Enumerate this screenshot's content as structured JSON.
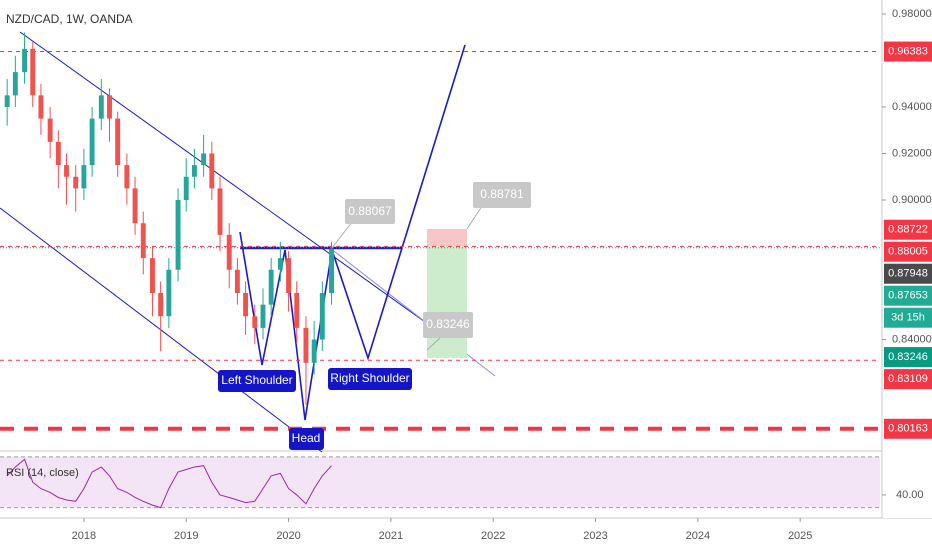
{
  "chart_data": {
    "type": "candlestick",
    "title": "NZD/CAD, 1W, OANDA",
    "x": [
      2017.25,
      2017.33,
      2017.42,
      2017.5,
      2017.58,
      2017.67,
      2017.75,
      2017.83,
      2017.92,
      2018.0,
      2018.08,
      2018.17,
      2018.25,
      2018.33,
      2018.42,
      2018.5,
      2018.58,
      2018.67,
      2018.75,
      2018.83,
      2018.92,
      2019.0,
      2019.08,
      2019.17,
      2019.25,
      2019.33,
      2019.42,
      2019.5,
      2019.58,
      2019.67,
      2019.75,
      2019.83,
      2019.92,
      2020.0,
      2020.08,
      2020.17,
      2020.25,
      2020.33,
      2020.42
    ],
    "open": [
      0.94,
      0.945,
      0.955,
      0.965,
      0.945,
      0.935,
      0.925,
      0.915,
      0.91,
      0.905,
      0.915,
      0.935,
      0.945,
      0.935,
      0.915,
      0.905,
      0.89,
      0.875,
      0.86,
      0.85,
      0.87,
      0.9,
      0.91,
      0.915,
      0.92,
      0.905,
      0.885,
      0.87,
      0.86,
      0.85,
      0.845,
      0.855,
      0.87,
      0.875,
      0.86,
      0.845,
      0.83,
      0.84,
      0.86
    ],
    "high": [
      0.952,
      0.962,
      0.972,
      0.968,
      0.95,
      0.94,
      0.93,
      0.92,
      0.915,
      0.922,
      0.94,
      0.952,
      0.948,
      0.938,
      0.92,
      0.91,
      0.895,
      0.88,
      0.865,
      0.875,
      0.905,
      0.918,
      0.922,
      0.928,
      0.925,
      0.91,
      0.89,
      0.875,
      0.865,
      0.855,
      0.862,
      0.875,
      0.882,
      0.878,
      0.865,
      0.85,
      0.848,
      0.865,
      0.882
    ],
    "low": [
      0.932,
      0.94,
      0.95,
      0.94,
      0.928,
      0.918,
      0.905,
      0.898,
      0.895,
      0.9,
      0.91,
      0.93,
      0.925,
      0.91,
      0.898,
      0.885,
      0.868,
      0.85,
      0.835,
      0.845,
      0.865,
      0.895,
      0.905,
      0.91,
      0.9,
      0.878,
      0.862,
      0.855,
      0.842,
      0.838,
      0.84,
      0.85,
      0.865,
      0.852,
      0.838,
      0.812,
      0.825,
      0.835,
      0.855
    ],
    "close": [
      0.945,
      0.955,
      0.965,
      0.945,
      0.935,
      0.925,
      0.915,
      0.91,
      0.905,
      0.915,
      0.935,
      0.945,
      0.935,
      0.915,
      0.905,
      0.89,
      0.875,
      0.86,
      0.85,
      0.87,
      0.9,
      0.91,
      0.915,
      0.92,
      0.905,
      0.885,
      0.87,
      0.86,
      0.85,
      0.845,
      0.855,
      0.87,
      0.875,
      0.86,
      0.845,
      0.83,
      0.84,
      0.86,
      0.879
    ],
    "up_color": "#26a69a",
    "down_color": "#ef5350",
    "xlim": [
      2017.18,
      2025.78
    ],
    "xticks": [
      2018,
      2019,
      2020,
      2021,
      2022,
      2023,
      2024,
      2025
    ],
    "ylim": [
      0.7925,
      0.986
    ],
    "yticks": [
      {
        "value": 0.98,
        "label": "0.98000"
      },
      {
        "value": 0.94,
        "label": "0.94000"
      },
      {
        "value": 0.92,
        "label": "0.92000"
      },
      {
        "value": 0.9,
        "label": "0.90000"
      },
      {
        "value": 0.84,
        "label": "0.84000"
      }
    ],
    "price_labels": [
      {
        "value": 0.96383,
        "label": "0.96383",
        "color": "#f23645",
        "line": "dashed"
      },
      {
        "value": 0.88722,
        "label": "0.88722",
        "color": "#f23645"
      },
      {
        "value": 0.88005,
        "label": "0.88005",
        "color": "#f23645",
        "line": "dashed"
      },
      {
        "value": 0.87948,
        "label": "0.87948",
        "color": "#4a4a4a",
        "line": "dotted"
      },
      {
        "value": 0.87653,
        "label": "0.87653",
        "color": "#22ab94"
      },
      {
        "value": 0.83246,
        "label": "0.83246",
        "color": "#089981"
      },
      {
        "value": 0.83109,
        "label": "0.83109",
        "color": "#f23645",
        "line": "dashed"
      },
      {
        "value": 0.80163,
        "label": "0.80163",
        "color": "#f23645",
        "line": "thick"
      }
    ],
    "countdown": "3d 15h",
    "annotations": {
      "left_shoulder": "Left Shoulder",
      "right_shoulder": "Right Shoulder",
      "head": "Head",
      "neck": "0.88067",
      "target": "0.88781",
      "stop": "0.83246"
    },
    "rsi": {
      "name": "RSI (14, close)",
      "color": "#9c27b0",
      "values": [
        55,
        62,
        68,
        50,
        45,
        42,
        38,
        36,
        35,
        45,
        58,
        62,
        55,
        45,
        42,
        38,
        35,
        32,
        30,
        45,
        58,
        60,
        62,
        63,
        50,
        40,
        38,
        36,
        34,
        35,
        45,
        55,
        57,
        45,
        40,
        33,
        45,
        55,
        63
      ],
      "ylim": [
        25,
        73
      ],
      "yticks": [
        {
          "value": 40,
          "label": "40.00"
        }
      ],
      "bands": [
        70,
        30
      ]
    }
  }
}
